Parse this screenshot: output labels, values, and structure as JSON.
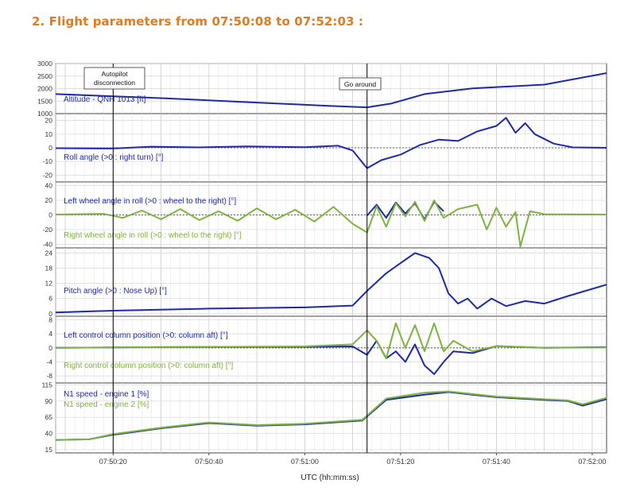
{
  "heading": "2. Flight parameters from 07:50:08 to 07:52:03 :",
  "colors": {
    "blue": "#1c2aa8",
    "green": "#7db33e",
    "heading": "#e07b1f",
    "event": "#000000"
  },
  "chart_data": {
    "type": "line",
    "xlabel": "UTC (hh:mm:ss)",
    "x_range": [
      "07:50:08",
      "07:52:03"
    ],
    "x_ticks": [
      "07:50:20",
      "07:50:40",
      "07:51:00",
      "07:51:20",
      "07:51:40",
      "07:52:00"
    ],
    "grid": true,
    "events": [
      {
        "time": "07:50:20",
        "label": "Autopilot disconnection"
      },
      {
        "time": "07:51:13",
        "label": "Go around"
      }
    ],
    "panels": [
      {
        "id": "altitude",
        "ylim": [
          1000,
          3000
        ],
        "yticks": [
          1000,
          1500,
          2000,
          2500,
          3000
        ],
        "series": [
          {
            "name": "Altitude - QNH 1013 [ft]",
            "color": "blue",
            "points": [
              [
                "07:50:08",
                1780
              ],
              [
                "07:50:30",
                1620
              ],
              [
                "07:50:50",
                1440
              ],
              [
                "07:51:05",
                1310
              ],
              [
                "07:51:13",
                1250
              ],
              [
                "07:51:18",
                1400
              ],
              [
                "07:51:25",
                1780
              ],
              [
                "07:51:35",
                2010
              ],
              [
                "07:51:50",
                2160
              ],
              [
                "07:52:03",
                2620
              ]
            ]
          }
        ]
      },
      {
        "id": "roll",
        "ylim": [
          -25,
          25
        ],
        "yticks": [
          -20,
          -10,
          0,
          10,
          20
        ],
        "zero_line": true,
        "series": [
          {
            "name": "Roll angle (>0 : right turn) [°]",
            "color": "blue",
            "points": [
              [
                "07:50:08",
                -0.3
              ],
              [
                "07:50:20",
                -0.5
              ],
              [
                "07:50:28",
                0.8
              ],
              [
                "07:50:38",
                0.3
              ],
              [
                "07:50:48",
                1.0
              ],
              [
                "07:51:00",
                0.4
              ],
              [
                "07:51:07",
                1.5
              ],
              [
                "07:51:10",
                -2.0
              ],
              [
                "07:51:13",
                -15.0
              ],
              [
                "07:51:16",
                -9.0
              ],
              [
                "07:51:20",
                -5.0
              ],
              [
                "07:51:24",
                2.0
              ],
              [
                "07:51:28",
                6.0
              ],
              [
                "07:51:32",
                5.0
              ],
              [
                "07:51:36",
                12.0
              ],
              [
                "07:51:40",
                16.0
              ],
              [
                "07:51:42",
                22.0
              ],
              [
                "07:51:44",
                11.0
              ],
              [
                "07:51:46",
                18.0
              ],
              [
                "07:51:48",
                10.0
              ],
              [
                "07:51:52",
                3.0
              ],
              [
                "07:51:56",
                0.3
              ],
              [
                "07:52:03",
                0.0
              ]
            ]
          }
        ]
      },
      {
        "id": "wheel",
        "ylim": [
          -45,
          45
        ],
        "yticks": [
          -40,
          -20,
          0,
          20,
          40
        ],
        "zero_line": true,
        "series": [
          {
            "name": "Left wheel angle in roll (>0 : wheel to the right) [°]",
            "color": "blue",
            "points": [
              [
                "07:51:13",
                -1
              ],
              [
                "07:51:15",
                14
              ],
              [
                "07:51:17",
                -4
              ],
              [
                "07:51:19",
                17
              ],
              [
                "07:51:21",
                2
              ],
              [
                "07:51:23",
                16
              ],
              [
                "07:51:25",
                -6
              ],
              [
                "07:51:27",
                18
              ],
              [
                "07:51:29",
                5
              ]
            ]
          },
          {
            "name": "Right wheel angle in roll (>0 : wheel to the right) [°]",
            "color": "green",
            "points": [
              [
                "07:50:08",
                0.5
              ],
              [
                "07:50:18",
                1.5
              ],
              [
                "07:50:22",
                -4
              ],
              [
                "07:50:26",
                6
              ],
              [
                "07:50:30",
                -6
              ],
              [
                "07:50:34",
                8
              ],
              [
                "07:50:38",
                -7
              ],
              [
                "07:50:42",
                5
              ],
              [
                "07:50:46",
                -8
              ],
              [
                "07:50:50",
                9
              ],
              [
                "07:50:54",
                -6
              ],
              [
                "07:50:58",
                7
              ],
              [
                "07:51:02",
                -9
              ],
              [
                "07:51:06",
                11
              ],
              [
                "07:51:10",
                -12
              ],
              [
                "07:51:13",
                -24
              ],
              [
                "07:51:15",
                12
              ],
              [
                "07:51:17",
                -16
              ],
              [
                "07:51:19",
                16
              ],
              [
                "07:51:21",
                -2
              ],
              [
                "07:51:23",
                18
              ],
              [
                "07:51:25",
                -8
              ],
              [
                "07:51:27",
                20
              ],
              [
                "07:51:29",
                -4
              ],
              [
                "07:51:32",
                8
              ],
              [
                "07:51:36",
                14
              ],
              [
                "07:51:38",
                -20
              ],
              [
                "07:51:40",
                10
              ],
              [
                "07:51:42",
                -16
              ],
              [
                "07:51:44",
                4
              ],
              [
                "07:51:45",
                -43
              ],
              [
                "07:51:47",
                5
              ],
              [
                "07:51:50",
                1
              ],
              [
                "07:52:03",
                0.5
              ]
            ]
          }
        ]
      },
      {
        "id": "pitch",
        "ylim": [
          -1,
          26
        ],
        "yticks": [
          0,
          6,
          12,
          18,
          24
        ],
        "series": [
          {
            "name": "Pitch angle (>0 : Nose Up) [°]",
            "color": "blue",
            "points": [
              [
                "07:50:08",
                0.5
              ],
              [
                "07:50:20",
                1.2
              ],
              [
                "07:50:40",
                2.0
              ],
              [
                "07:51:00",
                2.5
              ],
              [
                "07:51:10",
                3.2
              ],
              [
                "07:51:13",
                9.0
              ],
              [
                "07:51:17",
                16.0
              ],
              [
                "07:51:20",
                20.0
              ],
              [
                "07:51:23",
                24.0
              ],
              [
                "07:51:26",
                22.0
              ],
              [
                "07:51:28",
                18.0
              ],
              [
                "07:51:30",
                8.0
              ],
              [
                "07:51:32",
                4.0
              ],
              [
                "07:51:34",
                6.0
              ],
              [
                "07:51:36",
                2.0
              ],
              [
                "07:51:39",
                6.0
              ],
              [
                "07:51:42",
                3.0
              ],
              [
                "07:51:46",
                5.0
              ],
              [
                "07:51:50",
                4.0
              ],
              [
                "07:51:55",
                7.0
              ],
              [
                "07:52:03",
                11.5
              ]
            ]
          }
        ]
      },
      {
        "id": "column",
        "ylim": [
          -10,
          9
        ],
        "yticks": [
          -8,
          -4,
          0,
          4,
          8
        ],
        "zero_line": true,
        "series": [
          {
            "name": "Left control column position (>0: column aft) [°]",
            "color": "blue",
            "points": [
              [
                "07:50:08",
                0.0
              ],
              [
                "07:50:30",
                0.2
              ],
              [
                "07:51:00",
                0.3
              ],
              [
                "07:51:10",
                0.4
              ],
              [
                "07:51:13",
                -2.0
              ],
              [
                "07:51:15",
                2.0
              ],
              [
                "07:51:17",
                -3.0
              ],
              [
                "07:51:19",
                -1.0
              ],
              [
                "07:51:21",
                -4.0
              ],
              [
                "07:51:23",
                1.0
              ],
              [
                "07:51:25",
                -5.0
              ],
              [
                "07:51:27",
                -7.5
              ],
              [
                "07:51:29",
                -4.0
              ],
              [
                "07:51:31",
                -1.0
              ],
              [
                "07:51:35",
                -1.5
              ],
              [
                "07:51:40",
                0.5
              ],
              [
                "07:51:50",
                0.0
              ],
              [
                "07:52:03",
                0.2
              ]
            ]
          },
          {
            "name": "Right control column position (>0: column aft) [°]",
            "color": "green",
            "points": [
              [
                "07:50:08",
                0.0
              ],
              [
                "07:50:30",
                0.2
              ],
              [
                "07:51:00",
                0.4
              ],
              [
                "07:51:10",
                1.0
              ],
              [
                "07:51:13",
                5.0
              ],
              [
                "07:51:15",
                2.0
              ],
              [
                "07:51:17",
                -3.0
              ],
              [
                "07:51:19",
                7.0
              ],
              [
                "07:51:21",
                0.0
              ],
              [
                "07:51:23",
                6.5
              ],
              [
                "07:51:25",
                -1.0
              ],
              [
                "07:51:27",
                7.0
              ],
              [
                "07:51:29",
                -1.0
              ],
              [
                "07:51:31",
                2.0
              ],
              [
                "07:51:35",
                -1.0
              ],
              [
                "07:51:40",
                0.5
              ],
              [
                "07:51:50",
                0.0
              ],
              [
                "07:52:03",
                0.1
              ]
            ]
          }
        ]
      },
      {
        "id": "n1",
        "ylim": [
          10,
          118
        ],
        "yticks": [
          15,
          40,
          65,
          90,
          115
        ],
        "series": [
          {
            "name": "N1 speed - engine 1 [%]",
            "color": "blue",
            "points": [
              [
                "07:50:08",
                30
              ],
              [
                "07:50:15",
                31
              ],
              [
                "07:50:20",
                38
              ],
              [
                "07:50:30",
                48
              ],
              [
                "07:50:40",
                56
              ],
              [
                "07:50:50",
                52
              ],
              [
                "07:51:00",
                54
              ],
              [
                "07:51:12",
                60
              ],
              [
                "07:51:17",
                92
              ],
              [
                "07:51:25",
                100
              ],
              [
                "07:51:30",
                104
              ],
              [
                "07:51:35",
                100
              ],
              [
                "07:51:40",
                96
              ],
              [
                "07:51:45",
                94
              ],
              [
                "07:51:50",
                92
              ],
              [
                "07:51:55",
                90
              ],
              [
                "07:51:58",
                83
              ],
              [
                "07:52:03",
                93
              ]
            ]
          },
          {
            "name": "N1 speed - engine 2 [%]",
            "color": "green",
            "points": [
              [
                "07:50:08",
                30
              ],
              [
                "07:50:15",
                31
              ],
              [
                "07:50:20",
                39
              ],
              [
                "07:50:30",
                49
              ],
              [
                "07:50:40",
                57
              ],
              [
                "07:50:50",
                53
              ],
              [
                "07:51:00",
                55
              ],
              [
                "07:51:12",
                61
              ],
              [
                "07:51:17",
                94
              ],
              [
                "07:51:25",
                103
              ],
              [
                "07:51:30",
                105
              ],
              [
                "07:51:35",
                101
              ],
              [
                "07:51:40",
                97
              ],
              [
                "07:51:45",
                95
              ],
              [
                "07:51:50",
                93
              ],
              [
                "07:51:55",
                91
              ],
              [
                "07:51:58",
                85
              ],
              [
                "07:52:03",
                95
              ]
            ]
          }
        ]
      }
    ]
  }
}
